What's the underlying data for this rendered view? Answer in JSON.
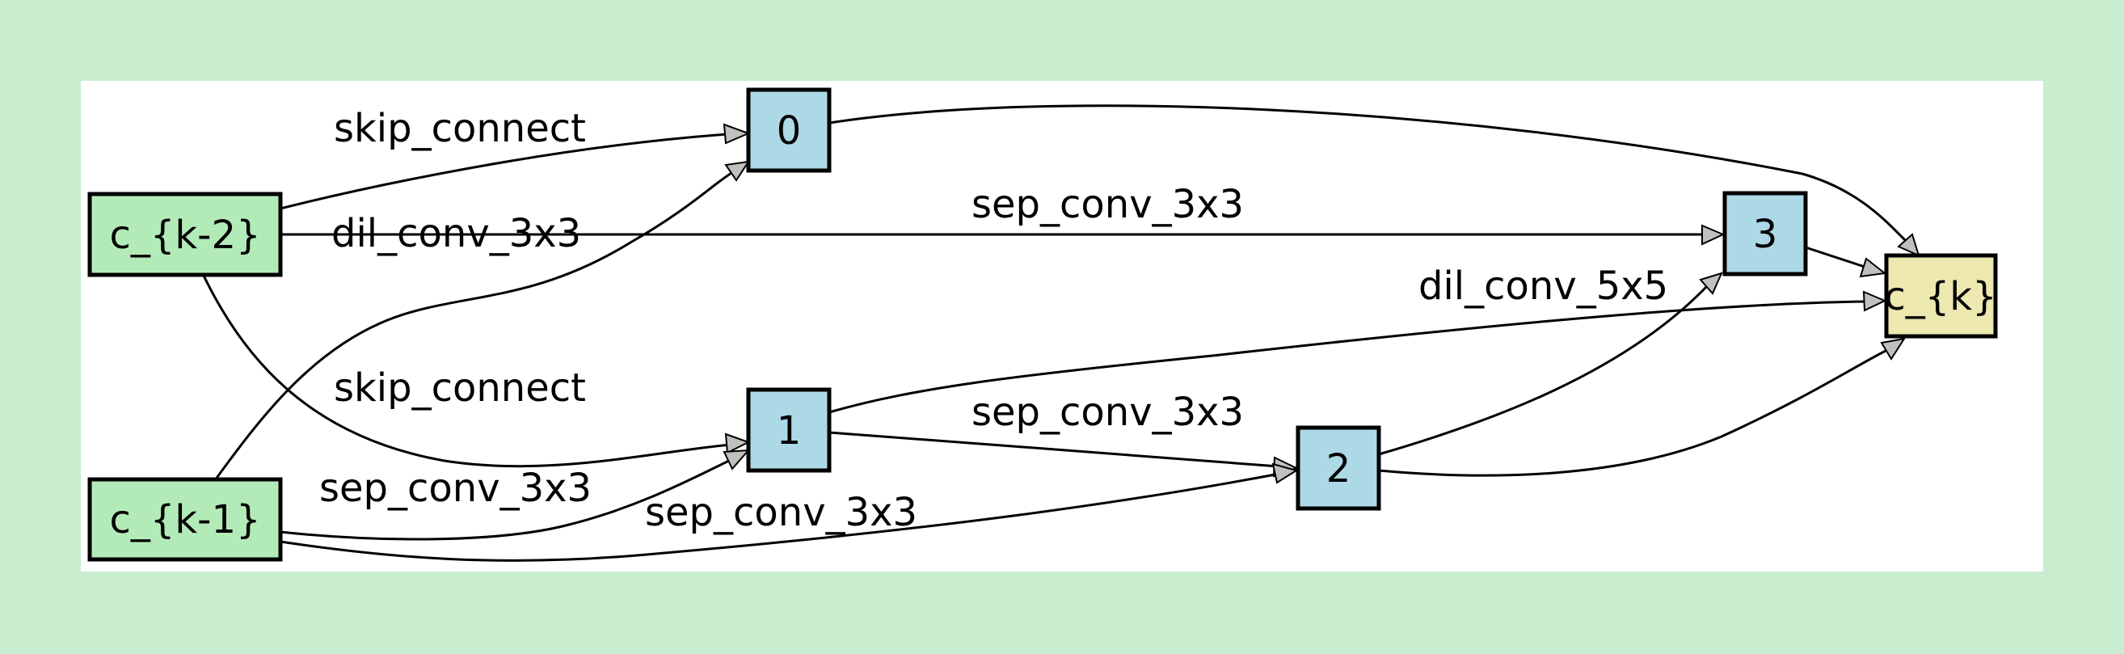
{
  "colors": {
    "page_background": "#c8eecf",
    "panel_background": "#ffffff",
    "input_node_fill": "#b3ebb8",
    "intermediate_node_fill": "#add8e6",
    "output_node_fill": "#ede8b0",
    "edge_stroke": "#000000",
    "arrow_fill": "#c0c0c0"
  },
  "nodes": {
    "ck2": {
      "label": "c_{k-2}",
      "role": "input"
    },
    "ck1": {
      "label": "c_{k-1}",
      "role": "input"
    },
    "n0": {
      "label": "0",
      "role": "intermediate"
    },
    "n1": {
      "label": "1",
      "role": "intermediate"
    },
    "n2": {
      "label": "2",
      "role": "intermediate"
    },
    "n3": {
      "label": "3",
      "role": "intermediate"
    },
    "ck": {
      "label": "c_{k}",
      "role": "output"
    }
  },
  "edges": [
    {
      "from": "c_{k-2}",
      "to": "0",
      "label": "skip_connect"
    },
    {
      "from": "c_{k-1}",
      "to": "0",
      "label": "dil_conv_3x3"
    },
    {
      "from": "c_{k-2}",
      "to": "1",
      "label": "skip_connect"
    },
    {
      "from": "c_{k-1}",
      "to": "1",
      "label": "sep_conv_3x3"
    },
    {
      "from": "1",
      "to": "2",
      "label": "sep_conv_3x3"
    },
    {
      "from": "c_{k-1}",
      "to": "2",
      "label": "sep_conv_3x3"
    },
    {
      "from": "c_{k-2}",
      "to": "3",
      "label": "sep_conv_3x3"
    },
    {
      "from": "2",
      "to": "3",
      "label": "dil_conv_5x5"
    },
    {
      "from": "0",
      "to": "c_{k}",
      "label": ""
    },
    {
      "from": "1",
      "to": "c_{k}",
      "label": ""
    },
    {
      "from": "2",
      "to": "c_{k}",
      "label": ""
    },
    {
      "from": "3",
      "to": "c_{k}",
      "label": ""
    }
  ]
}
